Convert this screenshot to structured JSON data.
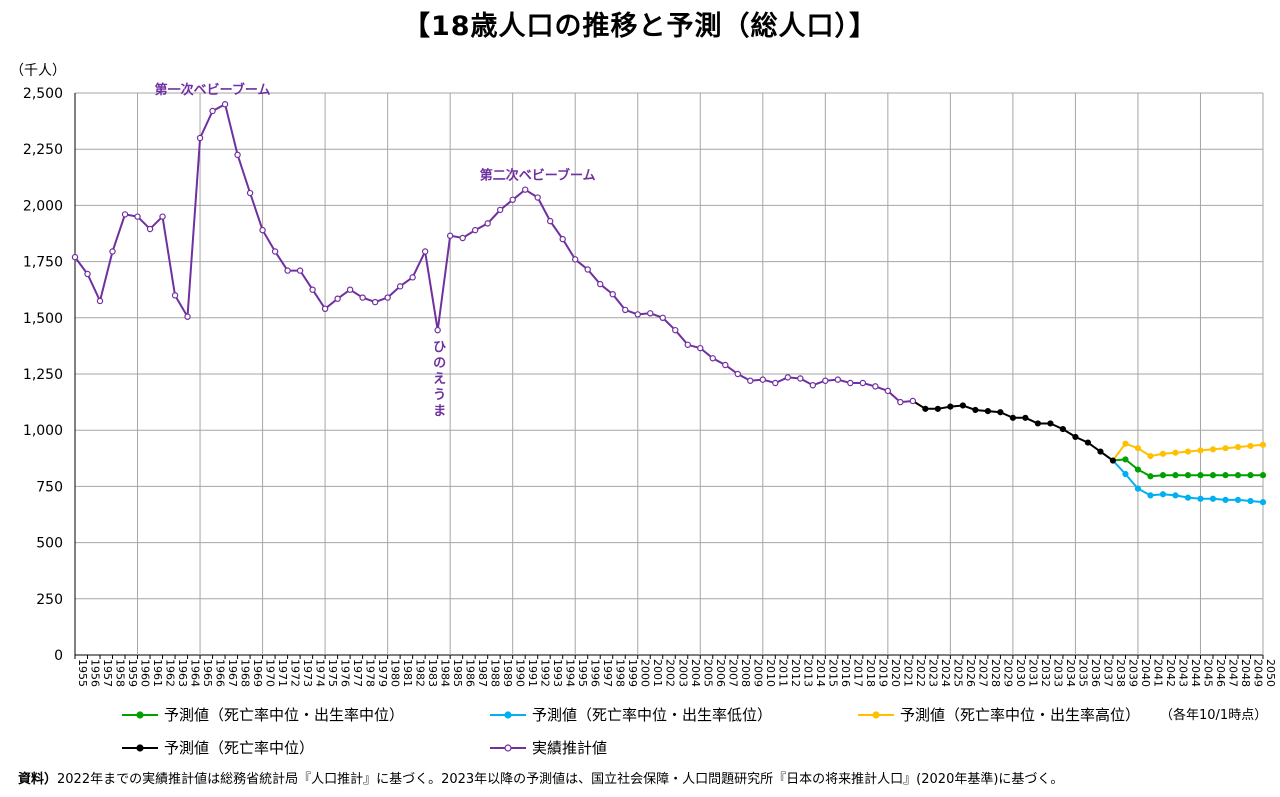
{
  "title": "【18歳人口の推移と予測（総人口）】",
  "note_label": "資料）",
  "note": "2022年までの実績推計値は総務省統計局『人口推計』に基づく。2023年以降の予測値は、国立社会保障・人口問題研究所『日本の将来推計人口』(2020年基準)に基づく。",
  "legend_note": "（各年10/1時点）",
  "chart_data": {
    "type": "line",
    "ylabel": "（千人）",
    "ylim": [
      0,
      2500
    ],
    "yticks": [
      0,
      250,
      500,
      750,
      1000,
      1250,
      1500,
      1750,
      2000,
      2250,
      2500
    ],
    "xlim": [
      1955,
      2050
    ],
    "grid": true,
    "legend_position": "bottom",
    "annotations": [
      {
        "text": "第一次ベビーブーム",
        "x": 1966,
        "y": 2450
      },
      {
        "text": "第二次ベビーブーム",
        "x": 1992,
        "y": 2070
      },
      {
        "text": "ひのえうま",
        "x": 1984,
        "y": 1450,
        "vertical": true
      }
    ],
    "series": [
      {
        "name": "実績推計値",
        "color": "#7030A0",
        "marker": "open",
        "x": [
          1955,
          1956,
          1957,
          1958,
          1959,
          1960,
          1961,
          1962,
          1963,
          1964,
          1965,
          1966,
          1967,
          1968,
          1969,
          1970,
          1971,
          1972,
          1973,
          1974,
          1975,
          1976,
          1977,
          1978,
          1979,
          1980,
          1981,
          1982,
          1983,
          1984,
          1985,
          1986,
          1987,
          1988,
          1989,
          1990,
          1991,
          1992,
          1993,
          1994,
          1995,
          1996,
          1997,
          1998,
          1999,
          2000,
          2001,
          2002,
          2003,
          2004,
          2005,
          2006,
          2007,
          2008,
          2009,
          2010,
          2011,
          2012,
          2013,
          2014,
          2015,
          2016,
          2017,
          2018,
          2019,
          2020,
          2021,
          2022
        ],
        "y": [
          1770,
          1695,
          1575,
          1795,
          1960,
          1950,
          1895,
          1950,
          1600,
          1505,
          2300,
          2420,
          2450,
          2225,
          2055,
          1890,
          1795,
          1710,
          1710,
          1625,
          1540,
          1585,
          1625,
          1590,
          1570,
          1590,
          1640,
          1680,
          1795,
          1445,
          1865,
          1855,
          1890,
          1920,
          1980,
          2025,
          2070,
          2035,
          1930,
          1850,
          1760,
          1715,
          1650,
          1605,
          1535,
          1515,
          1520,
          1500,
          1445,
          1380,
          1365,
          1320,
          1290,
          1250,
          1220,
          1225,
          1210,
          1235,
          1230,
          1200,
          1220,
          1225,
          1210,
          1210,
          1195,
          1175,
          1125,
          1130
        ]
      },
      {
        "name": "予測値（死亡率中位）",
        "color": "#000000",
        "marker": "filled",
        "x": [
          2022,
          2023,
          2024,
          2025,
          2026,
          2027,
          2028,
          2029,
          2030,
          2031,
          2032,
          2033,
          2034,
          2035,
          2036,
          2037,
          2038
        ],
        "y": [
          1130,
          1095,
          1095,
          1105,
          1110,
          1090,
          1085,
          1080,
          1055,
          1055,
          1030,
          1030,
          1005,
          970,
          945,
          905,
          865
        ]
      },
      {
        "name": "予測値（死亡率中位・出生率中位）",
        "color": "#00A000",
        "marker": "filled",
        "x": [
          2038,
          2039,
          2040,
          2041,
          2042,
          2043,
          2044,
          2045,
          2046,
          2047,
          2048,
          2049,
          2050
        ],
        "y": [
          865,
          870,
          825,
          795,
          800,
          800,
          800,
          800,
          800,
          800,
          800,
          800,
          800
        ]
      },
      {
        "name": "予測値（死亡率中位・出生率低位）",
        "color": "#00B0F0",
        "marker": "filled",
        "x": [
          2038,
          2039,
          2040,
          2041,
          2042,
          2043,
          2044,
          2045,
          2046,
          2047,
          2048,
          2049,
          2050
        ],
        "y": [
          865,
          805,
          740,
          710,
          715,
          710,
          700,
          695,
          695,
          690,
          690,
          685,
          680
        ]
      },
      {
        "name": "予測値（死亡率中位・出生率高位）",
        "color": "#FFC000",
        "marker": "filled",
        "x": [
          2038,
          2039,
          2040,
          2041,
          2042,
          2043,
          2044,
          2045,
          2046,
          2047,
          2048,
          2049,
          2050
        ],
        "y": [
          865,
          940,
          920,
          885,
          895,
          900,
          905,
          910,
          915,
          920,
          925,
          930,
          935
        ]
      }
    ]
  }
}
